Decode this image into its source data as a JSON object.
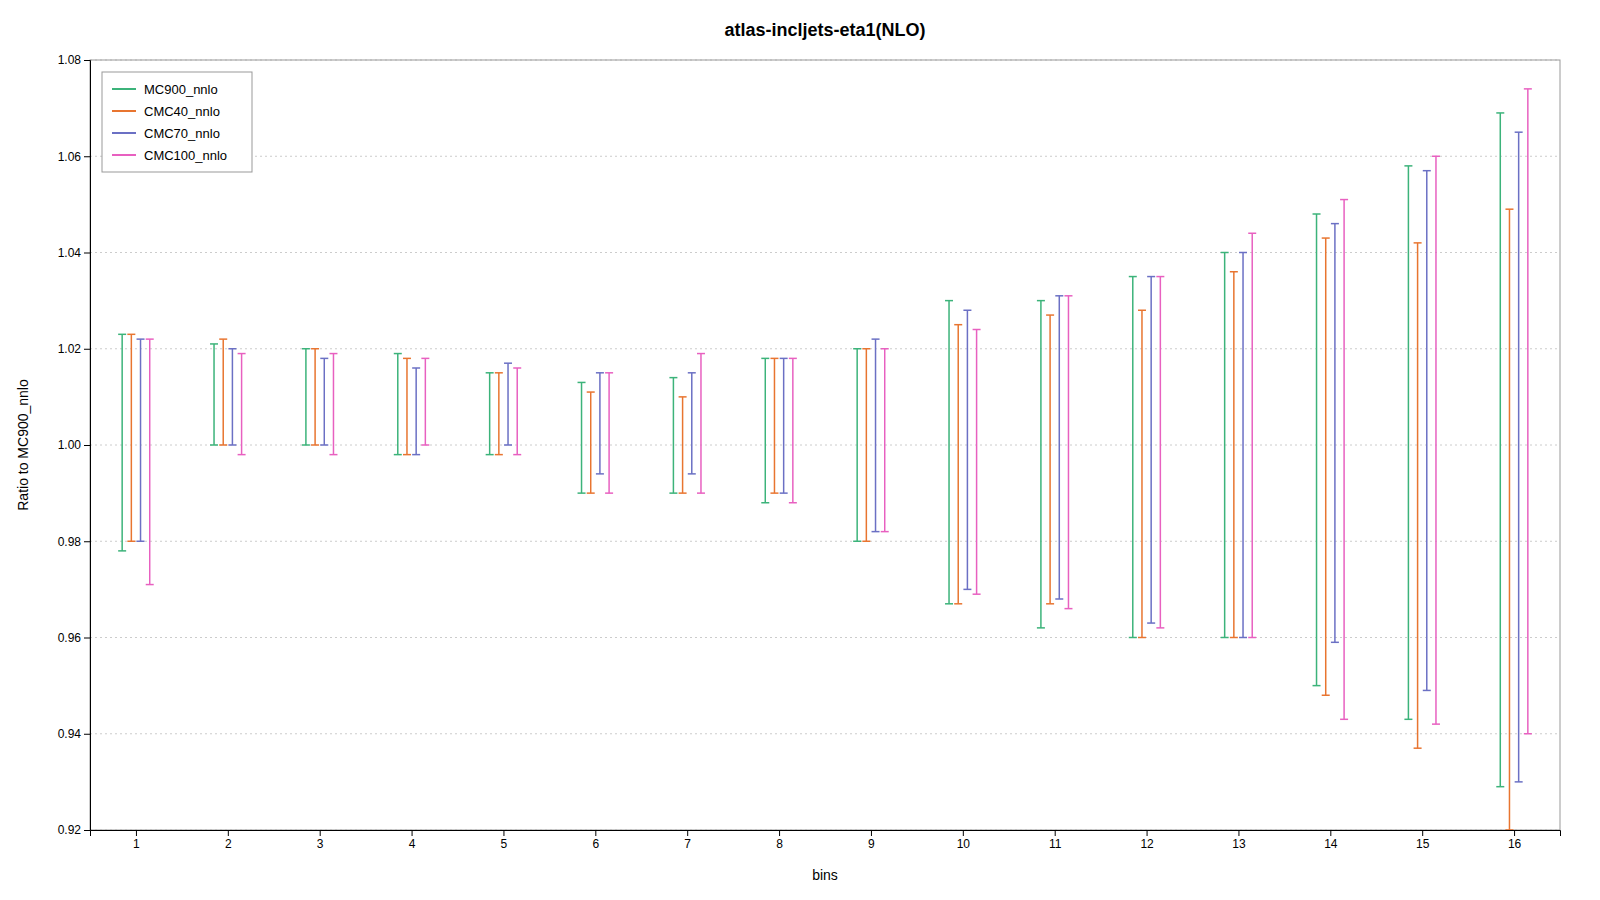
{
  "chart_data": {
    "type": "errorbar",
    "title": "atlas-incljets-eta1(NLO)",
    "xlabel": "bins",
    "ylabel": "Ratio to MC900_nnlo",
    "x": [
      1,
      2,
      3,
      4,
      5,
      6,
      7,
      8,
      9,
      10,
      11,
      12,
      13,
      14,
      15,
      16
    ],
    "xlim": [
      0.5,
      16.5
    ],
    "xticks": [
      1,
      2,
      3,
      4,
      5,
      6,
      7,
      8,
      9,
      10,
      11,
      12,
      13,
      14,
      15,
      16
    ],
    "ylim": [
      0.92,
      1.08
    ],
    "yticks": [
      0.92,
      0.94,
      0.96,
      0.98,
      {
        "value": 1.0,
        "label": "1.00"
      },
      1.02,
      1.04,
      1.06,
      1.08
    ],
    "grid": true,
    "legend": "upper left",
    "series": [
      {
        "name": "MC900_nnlo",
        "color": "#3cb37a",
        "values": [
          1.023,
          1.021,
          1.02,
          1.019,
          1.015,
          1.013,
          1.014,
          1.018,
          1.02,
          1.025,
          1.03,
          1.035,
          1.04,
          1.048,
          1.058,
          1.069
        ],
        "yerr_lo": [
          0.045,
          0.021,
          0.02,
          0.021,
          0.017,
          0.023,
          0.024,
          0.03,
          0.04,
          0.058,
          0.068,
          0.075,
          0.08,
          0.098,
          0.115,
          0.14
        ],
        "yerr_hi": [
          0.0,
          0.0,
          0.0,
          0.0,
          0.0,
          0.0,
          0.0,
          0.0,
          0.0,
          0.005,
          0.0,
          0.0,
          0.0,
          0.0,
          0.0,
          0.0
        ]
      },
      {
        "name": "CMC40_nnlo",
        "color": "#e87530",
        "values": [
          1.023,
          1.021,
          1.019,
          1.016,
          1.014,
          1.011,
          1.009,
          1.018,
          1.005,
          1.025,
          1.027,
          1.028,
          1.036,
          1.043,
          1.042,
          1.049
        ],
        "yerr_lo": [
          0.043,
          0.021,
          0.019,
          0.018,
          0.016,
          0.021,
          0.019,
          0.028,
          0.025,
          0.058,
          0.06,
          0.068,
          0.076,
          0.095,
          0.105,
          0.129
        ],
        "yerr_hi": [
          0.0,
          0.001,
          0.001,
          0.002,
          0.001,
          0.0,
          0.001,
          0.0,
          0.015,
          0.0,
          0.0,
          0.0,
          0.0,
          0.0,
          0.0,
          0.0
        ]
      },
      {
        "name": "CMC70_nnlo",
        "color": "#6b70c4",
        "values": [
          1.022,
          1.02,
          1.018,
          1.016,
          1.017,
          1.015,
          1.015,
          1.018,
          1.02,
          1.025,
          1.031,
          1.035,
          1.04,
          1.046,
          1.057,
          1.065
        ],
        "yerr_lo": [
          0.042,
          0.02,
          0.018,
          0.018,
          0.017,
          0.021,
          0.021,
          0.028,
          0.038,
          0.055,
          0.063,
          0.072,
          0.08,
          0.087,
          0.108,
          0.135
        ],
        "yerr_hi": [
          0.0,
          0.0,
          0.0,
          0.0,
          0.0,
          0.0,
          0.0,
          0.0,
          0.002,
          0.003,
          0.0,
          0.0,
          0.0,
          0.0,
          0.0,
          0.0
        ]
      },
      {
        "name": "CMC100_nnlo",
        "color": "#e860c0",
        "values": [
          1.022,
          1.019,
          1.018,
          1.015,
          1.013,
          1.012,
          1.015,
          1.018,
          1.02,
          1.024,
          1.031,
          1.035,
          1.041,
          1.051,
          1.06,
          1.067
        ],
        "yerr_lo": [
          0.051,
          0.021,
          0.02,
          0.015,
          0.015,
          0.022,
          0.025,
          0.03,
          0.038,
          0.055,
          0.065,
          0.073,
          0.081,
          0.108,
          0.118,
          0.127
        ],
        "yerr_hi": [
          0.0,
          0.0,
          0.001,
          0.003,
          0.003,
          0.003,
          0.004,
          0.0,
          0.0,
          0.0,
          0.0,
          0.0,
          0.003,
          0.0,
          0.0,
          0.007
        ]
      }
    ]
  }
}
